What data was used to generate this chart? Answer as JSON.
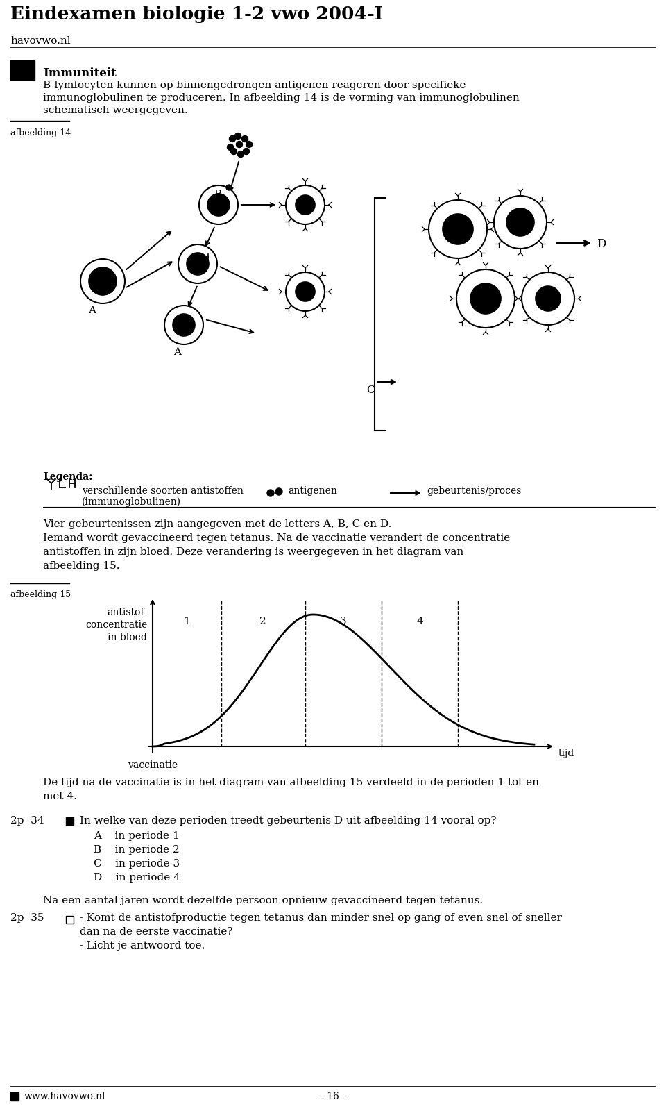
{
  "title": "Eindexamen biologie 1-2 vwo 2004-I",
  "website": "havovwo.nl",
  "website2": "www.havovwo.nl",
  "page": "- 16 -",
  "section_title": "Immuniteit",
  "section_text1": "B-lymfocyten kunnen op binnengedrongen antigenen reageren door specifieke",
  "section_text2": "immunoglobulinen te produceren. In afbeelding 14 is de vorming van immunoglobulinen",
  "section_text3": "schematisch weergegeven.",
  "afbeelding14": "afbeelding 14",
  "afbeelding15": "afbeelding 15",
  "legenda_text1": "verschillende soorten antistoffen",
  "legenda_text2": "(immunoglobulinen)",
  "legenda_antigen": "antigenen",
  "legenda_event": "gebeurtenis/proces",
  "vier_text1": "Vier gebeurtenissen zijn aangegeven met de letters A, B, C en D.",
  "vier_text2": "Iemand wordt gevaccineerd tegen tetanus. Na de vaccinatie verandert de concentratie",
  "vier_text3": "antistoffen in zijn bloed. Deze verandering is weergegeven in het diagram van",
  "vier_text4": "afbeelding 15.",
  "diagram_ylabel1": "antistof-",
  "diagram_ylabel2": "concentratie",
  "diagram_ylabel3": "in bloed",
  "diagram_xlabel": "tijd",
  "diagram_periods": [
    "1",
    "2",
    "3",
    "4"
  ],
  "vaccinatie": "vaccinatie",
  "de_tijd_text1": "De tijd na de vaccinatie is in het diagram van afbeelding 15 verdeeld in de perioden 1 tot en",
  "de_tijd_text2": "met 4.",
  "q34_prefix": "2p  34",
  "q34_text": "In welke van deze perioden treedt gebeurtenis D uit afbeelding 14 vooral op?",
  "q34_A": "A    in periode 1",
  "q34_B": "B    in periode 2",
  "q34_C": "C    in periode 3",
  "q34_D": "D    in periode 4",
  "q35_prefix": "2p  35",
  "q35_text1": "Na een aantal jaren wordt dezelfde persoon opnieuw gevaccineerd tegen tetanus.",
  "q35_text2": "- Komt de antistofproductie tegen tetanus dan minder snel op gang of even snel of sneller",
  "q35_text3": "dan na de eerste vaccinatie?",
  "q35_text4": "- Licht je antwoord toe.",
  "bg_color": "#ffffff",
  "text_color": "#000000"
}
